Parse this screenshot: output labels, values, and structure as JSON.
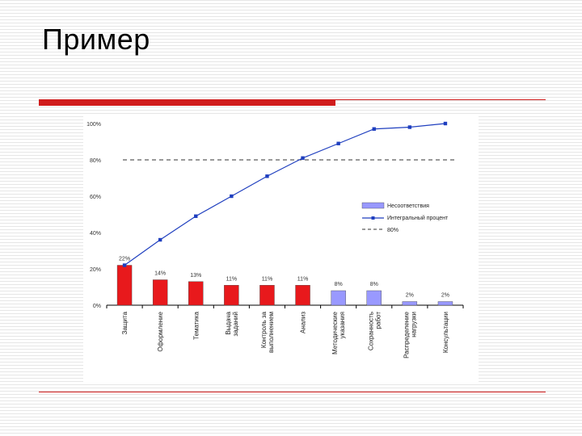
{
  "slide": {
    "title": "Пример",
    "accent_color": "#d01c1c"
  },
  "chart_data": {
    "type": "bar",
    "categories": [
      "Защита",
      "Оформление",
      "Тематика",
      "Выдача заданий",
      "Контроль за выполнением",
      "Анализ",
      "Методические указания",
      "Сохранность работ",
      "Распределение нагрузки",
      "Консультации"
    ],
    "values": [
      22,
      14,
      13,
      11,
      11,
      11,
      8,
      8,
      2,
      2
    ],
    "value_labels": [
      "22%",
      "14%",
      "13%",
      "11%",
      "11%",
      "11%",
      "8%",
      "8%",
      "2%",
      "2%"
    ],
    "bar_colors": [
      "#e8191c",
      "#e8191c",
      "#e8191c",
      "#e8191c",
      "#e8191c",
      "#e8191c",
      "#9999ff",
      "#9999ff",
      "#9999ff",
      "#9999ff"
    ],
    "series": [
      {
        "name": "Несоответствия",
        "type": "bar"
      },
      {
        "name": "Интегральный процент",
        "type": "line",
        "values": [
          22,
          36,
          49,
          60,
          71,
          81,
          89,
          97,
          98,
          100
        ]
      },
      {
        "name": "80%",
        "type": "reference",
        "value": 80
      }
    ],
    "ylim": [
      0,
      100
    ],
    "yticks": [
      "0%",
      "20%",
      "40%",
      "60%",
      "80%",
      "100%"
    ],
    "line_color": "#1f3fbf",
    "legend_position": "right",
    "grid": false
  }
}
